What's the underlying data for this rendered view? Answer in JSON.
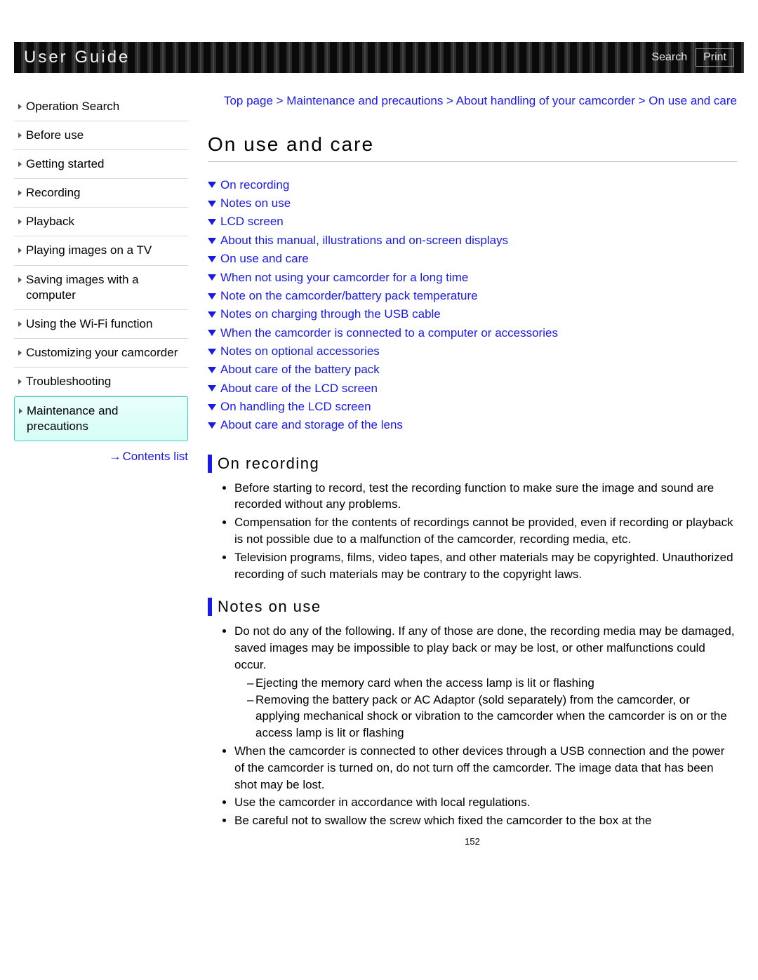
{
  "topbar": {
    "title": "User Guide",
    "search_label": "Search",
    "print_label": "Print"
  },
  "sidebar": {
    "items": [
      "Operation Search",
      "Before use",
      "Getting started",
      "Recording",
      "Playback",
      "Playing images on a TV",
      "Saving images with a computer",
      "Using the Wi-Fi function",
      "Customizing your camcorder",
      "Troubleshooting",
      "Maintenance and precautions"
    ],
    "active_index": 10,
    "contents_list_label": "Contents list"
  },
  "breadcrumb": "Top page > Maintenance and precautions > About handling of your camcorder > On use and care",
  "page_title": "On use and care",
  "toc": [
    "On recording",
    "Notes on use",
    "LCD screen",
    "About this manual, illustrations and on-screen displays",
    "On use and care",
    "When not using your camcorder for a long time",
    "Note on the camcorder/battery pack temperature",
    "Notes on charging through the USB cable",
    "When the camcorder is connected to a computer or accessories",
    "Notes on optional accessories",
    "About care of the battery pack",
    "About care of the LCD screen",
    "On handling the LCD screen",
    "About care and storage of the lens"
  ],
  "sections": [
    {
      "heading": "On recording",
      "bullets": [
        "Before starting to record, test the recording function to make sure the image and sound are recorded without any problems.",
        "Compensation for the contents of recordings cannot be provided, even if recording or playback is not possible due to a malfunction of the camcorder, recording media, etc.",
        "Television programs, films, video tapes, and other materials may be copyrighted. Unauthorized recording of such materials may be contrary to the copyright laws."
      ]
    },
    {
      "heading": "Notes on use",
      "bullets": [
        {
          "text": "Do not do any of the following. If any of those are done, the recording media may be damaged, saved images may be impossible to play back or may be lost, or other malfunctions could occur.",
          "sub": [
            "Ejecting the memory card when the access lamp is lit or flashing",
            "Removing the battery pack or AC Adaptor (sold separately) from the camcorder, or applying mechanical shock or vibration to the camcorder when the camcorder is on or the access lamp is lit or flashing"
          ]
        },
        "When the camcorder is connected to other devices through a USB connection and the power of the camcorder is turned on, do not turn off the camcorder. The image data that has been shot may be lost.",
        "Use the camcorder in accordance with local regulations.",
        "Be careful not to swallow the screw which fixed the camcorder to the box at the"
      ]
    }
  ],
  "page_number": "152",
  "colors": {
    "link": "#1a1ae6",
    "rule": "#bcbcbc",
    "active_bg_top": "#eafffb",
    "active_bg_bottom": "#d5fef6",
    "active_border": "#3ad0c6"
  }
}
